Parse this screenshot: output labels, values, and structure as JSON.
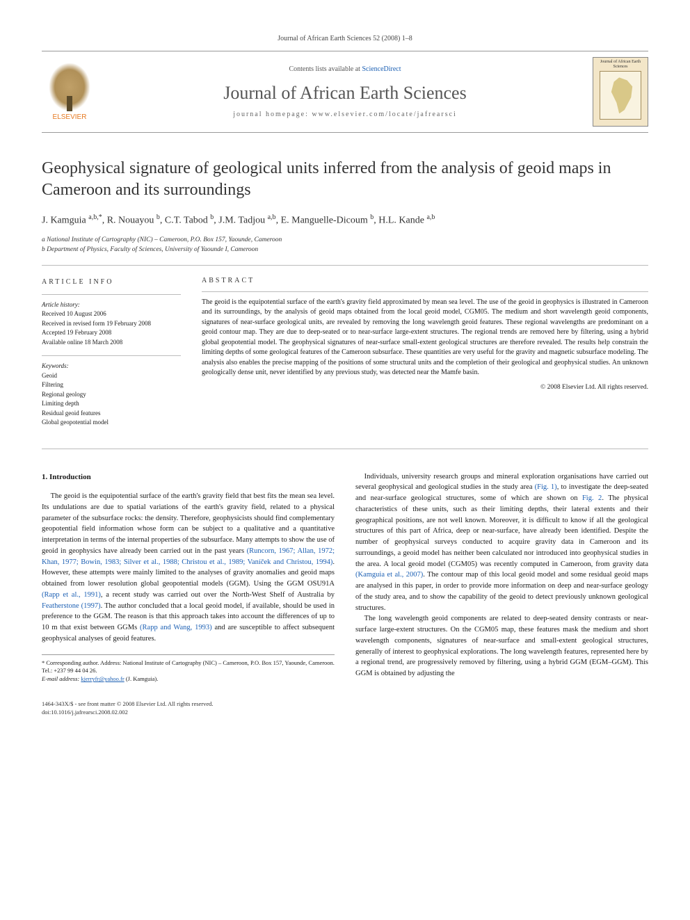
{
  "header": {
    "running_head": "Journal of African Earth Sciences 52 (2008) 1–8",
    "contents_prefix": "Contents lists available at ",
    "contents_link": "ScienceDirect",
    "journal_name": "Journal of African Earth Sciences",
    "homepage_line": "journal homepage: www.elsevier.com/locate/jafrearsci",
    "publisher_logo_label": "ELSEVIER",
    "cover_thumb_title": "Journal of African Earth Sciences"
  },
  "article": {
    "title": "Geophysical signature of geological units inferred from the analysis of geoid maps in Cameroon and its surroundings",
    "authors_html": "J. Kamguia <sup>a,b,*</sup>, R. Nouayou <sup>b</sup>, C.T. Tabod <sup>b</sup>, J.M. Tadjou <sup>a,b</sup>, E. Manguelle-Dicoum <sup>b</sup>, H.L. Kande <sup>a,b</sup>",
    "affiliations": {
      "a": "a National Institute of Cartography (NIC) – Cameroon, P.O. Box 157, Yaounde, Cameroon",
      "b": "b Department of Physics, Faculty of Sciences, University of Yaounde I, Cameroon"
    }
  },
  "article_info": {
    "heading": "ARTICLE INFO",
    "history_head": "Article history:",
    "history": {
      "received": "Received 10 August 2006",
      "revised": "Received in revised form 19 February 2008",
      "accepted": "Accepted 19 February 2008",
      "online": "Available online 18 March 2008"
    },
    "keywords_head": "Keywords:",
    "keywords": [
      "Geoid",
      "Filtering",
      "Regional geology",
      "Limiting depth",
      "Residual geoid features",
      "Global geopotential model"
    ]
  },
  "abstract": {
    "heading": "ABSTRACT",
    "text": "The geoid is the equipotential surface of the earth's gravity field approximated by mean sea level. The use of the geoid in geophysics is illustrated in Cameroon and its surroundings, by the analysis of geoid maps obtained from the local geoid model, CGM05. The medium and short wavelength geoid components, signatures of near-surface geological units, are revealed by removing the long wavelength geoid features. These regional wavelengths are predominant on a geoid contour map. They are due to deep-seated or to near-surface large-extent structures. The regional trends are removed here by filtering, using a hybrid global geopotential model. The geophysical signatures of near-surface small-extent geological structures are therefore revealed. The results help constrain the limiting depths of some geological features of the Cameroon subsurface. These quantities are very useful for the gravity and magnetic subsurface modeling. The analysis also enables the precise mapping of the positions of some structural units and the completion of their geological and geophysical studies. An unknown geologically dense unit, never identified by any previous study, was detected near the Mamfe basin.",
    "copyright": "© 2008 Elsevier Ltd. All rights reserved."
  },
  "body": {
    "section1_head": "1. Introduction",
    "col1_p1": "The geoid is the equipotential surface of the earth's gravity field that best fits the mean sea level. Its undulations are due to spatial variations of the earth's gravity field, related to a physical parameter of the subsurface rocks: the density. Therefore, geophysicists should find complementary geopotential field information whose form can be subject to a qualitative and a quantitative interpretation in terms of the internal properties of the subsurface. Many attempts to show the use of geoid in geophysics have already been carried out in the past years ",
    "col1_cite1": "(Runcorn, 1967; Allan, 1972; Khan, 1977; Bowin, 1983; Silver et al., 1988; Christou et al., 1989; Vaníček and Christou, 1994)",
    "col1_p1b": ". However, these attempts were mainly limited to the analyses of gravity anomalies and geoid maps obtained from lower resolution global geopotential models (GGM). Using the GGM OSU91A ",
    "col1_cite2": "(Rapp et al., 1991)",
    "col1_p1c": ", a recent study was carried out over the North-West Shelf of Australia by ",
    "col1_cite3": "Featherstone (1997)",
    "col1_p1d": ". The author concluded that a local geoid model, if available, should be used in preference to the GGM. The reason is that this approach takes into account the differences of up to 10 m that exist between GGMs ",
    "col1_cite4": "(Rapp and Wang, 1993)",
    "col1_p1e": " and are susceptible to affect subsequent geophysical analyses of geoid features.",
    "col2_p1": "Individuals, university research groups and mineral exploration organisations have carried out several geophysical and geological studies in the study area ",
    "col2_cite1": "(Fig. 1)",
    "col2_p1b": ", to investigate the deep-seated and near-surface geological structures, some of which are shown on ",
    "col2_cite2": "Fig. 2",
    "col2_p1c": ". The physical characteristics of these units, such as their limiting depths, their lateral extents and their geographical positions, are not well known. Moreover, it is difficult to know if all the geological structures of this part of Africa, deep or near-surface, have already been identified. Despite the number of geophysical surveys conducted to acquire gravity data in Cameroon and its surroundings, a geoid model has neither been calculated nor introduced into geophysical studies in the area. A local geoid model (CGM05) was recently computed in Cameroon, from gravity data ",
    "col2_cite3": "(Kamguia et al., 2007)",
    "col2_p1d": ". The contour map of this local geoid model and some residual geoid maps are analysed in this paper, in order to provide more information on deep and near-surface geology of the study area, and to show the capability of the geoid to detect previously unknown geological structures.",
    "col2_p2": "The long wavelength geoid components are related to deep-seated density contrasts or near-surface large-extent structures. On the CGM05 map, these features mask the medium and short wavelength components, signatures of near-surface and small-extent geological structures, generally of interest to geophysical explorations. The long wavelength features, represented here by a regional trend, are progressively removed by filtering, using a hybrid GGM (EGM–GGM). This GGM is obtained by adjusting the"
  },
  "footnote": {
    "corr": "* Corresponding author. Address: National Institute of Cartography (NIC) – Cameroon, P.O. Box 157, Yaounde, Cameroon. Tel.: +237 99 44 04 26.",
    "email_label": "E-mail address: ",
    "email": "kjerryfr@yahoo.fr",
    "email_who": " (J. Kamguia)."
  },
  "footer": {
    "issn": "1464-343X/$ - see front matter © 2008 Elsevier Ltd. All rights reserved.",
    "doi": "doi:10.1016/j.jafrearsci.2008.02.002"
  },
  "colors": {
    "link": "#1b5fb3",
    "text": "#1a1a1a",
    "rule": "#999999",
    "elsevier_orange": "#e67a22"
  }
}
